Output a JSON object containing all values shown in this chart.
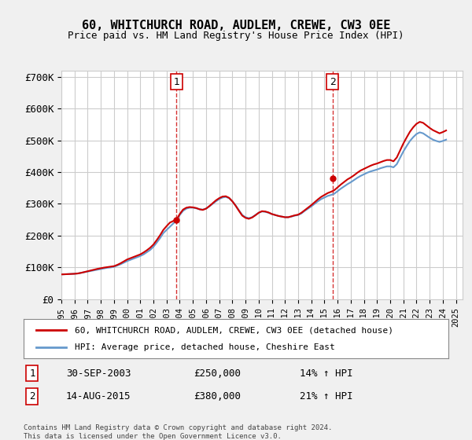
{
  "title": "60, WHITCHURCH ROAD, AUDLEM, CREWE, CW3 0EE",
  "subtitle": "Price paid vs. HM Land Registry's House Price Index (HPI)",
  "xlabel": "",
  "ylabel": "",
  "ylim": [
    0,
    720000
  ],
  "yticks": [
    0,
    100000,
    200000,
    300000,
    400000,
    500000,
    600000,
    700000
  ],
  "ytick_labels": [
    "£0",
    "£100K",
    "£200K",
    "£300K",
    "£400K",
    "£500K",
    "£600K",
    "£700K"
  ],
  "background_color": "#f0f0f0",
  "plot_background": "#ffffff",
  "grid_color": "#cccccc",
  "line1_color": "#cc0000",
  "line2_color": "#6699cc",
  "sale1_date": 2003.75,
  "sale1_price": 250000,
  "sale2_date": 2015.62,
  "sale2_price": 380000,
  "vline_color": "#cc0000",
  "marker_size": 8,
  "legend1_label": "60, WHITCHURCH ROAD, AUDLEM, CREWE, CW3 0EE (detached house)",
  "legend2_label": "HPI: Average price, detached house, Cheshire East",
  "annotation1_num": "1",
  "annotation2_num": "2",
  "note1_num": "1",
  "note1_date": "30-SEP-2003",
  "note1_price": "£250,000",
  "note1_hpi": "14% ↑ HPI",
  "note2_num": "2",
  "note2_date": "14-AUG-2015",
  "note2_price": "£380,000",
  "note2_hpi": "21% ↑ HPI",
  "footer": "Contains HM Land Registry data © Crown copyright and database right 2024.\nThis data is licensed under the Open Government Licence v3.0.",
  "hpi_data": {
    "dates": [
      1995.0,
      1995.25,
      1995.5,
      1995.75,
      1996.0,
      1996.25,
      1996.5,
      1996.75,
      1997.0,
      1997.25,
      1997.5,
      1997.75,
      1998.0,
      1998.25,
      1998.5,
      1998.75,
      1999.0,
      1999.25,
      1999.5,
      1999.75,
      2000.0,
      2000.25,
      2000.5,
      2000.75,
      2001.0,
      2001.25,
      2001.5,
      2001.75,
      2002.0,
      2002.25,
      2002.5,
      2002.75,
      2003.0,
      2003.25,
      2003.5,
      2003.75,
      2004.0,
      2004.25,
      2004.5,
      2004.75,
      2005.0,
      2005.25,
      2005.5,
      2005.75,
      2006.0,
      2006.25,
      2006.5,
      2006.75,
      2007.0,
      2007.25,
      2007.5,
      2007.75,
      2008.0,
      2008.25,
      2008.5,
      2008.75,
      2009.0,
      2009.25,
      2009.5,
      2009.75,
      2010.0,
      2010.25,
      2010.5,
      2010.75,
      2011.0,
      2011.25,
      2011.5,
      2011.75,
      2012.0,
      2012.25,
      2012.5,
      2012.75,
      2013.0,
      2013.25,
      2013.5,
      2013.75,
      2014.0,
      2014.25,
      2014.5,
      2014.75,
      2015.0,
      2015.25,
      2015.5,
      2015.75,
      2016.0,
      2016.25,
      2016.5,
      2016.75,
      2017.0,
      2017.25,
      2017.5,
      2017.75,
      2018.0,
      2018.25,
      2018.5,
      2018.75,
      2019.0,
      2019.25,
      2019.5,
      2019.75,
      2020.0,
      2020.25,
      2020.5,
      2020.75,
      2021.0,
      2021.25,
      2021.5,
      2021.75,
      2022.0,
      2022.25,
      2022.5,
      2022.75,
      2023.0,
      2023.25,
      2023.5,
      2023.75,
      2024.0,
      2024.25
    ],
    "hpi_values": [
      78000,
      78500,
      79000,
      79500,
      80000,
      81000,
      83000,
      85000,
      87000,
      89000,
      91000,
      93000,
      95000,
      97000,
      99000,
      100000,
      102000,
      106000,
      110000,
      115000,
      120000,
      124000,
      128000,
      132000,
      136000,
      141000,
      148000,
      155000,
      165000,
      178000,
      192000,
      208000,
      218000,
      228000,
      238000,
      248000,
      265000,
      278000,
      285000,
      288000,
      288000,
      286000,
      283000,
      282000,
      285000,
      292000,
      300000,
      308000,
      315000,
      320000,
      322000,
      318000,
      308000,
      295000,
      280000,
      265000,
      258000,
      255000,
      258000,
      265000,
      272000,
      276000,
      275000,
      272000,
      268000,
      265000,
      262000,
      260000,
      258000,
      258000,
      260000,
      263000,
      265000,
      270000,
      278000,
      285000,
      292000,
      300000,
      308000,
      315000,
      320000,
      325000,
      328000,
      332000,
      340000,
      348000,
      355000,
      362000,
      368000,
      375000,
      382000,
      388000,
      393000,
      398000,
      402000,
      405000,
      408000,
      412000,
      415000,
      418000,
      418000,
      415000,
      425000,
      445000,
      465000,
      482000,
      498000,
      510000,
      520000,
      525000,
      522000,
      515000,
      508000,
      502000,
      498000,
      495000,
      498000,
      502000
    ],
    "price_values": [
      78000,
      78500,
      79000,
      79500,
      80000,
      81000,
      83000,
      85500,
      88000,
      90500,
      93000,
      95500,
      97500,
      99500,
      101000,
      102500,
      104000,
      108000,
      113000,
      119000,
      125000,
      129000,
      133000,
      137000,
      141000,
      147000,
      154000,
      162000,
      172000,
      186000,
      201000,
      218000,
      230000,
      241000,
      246000,
      250000,
      268000,
      282000,
      288000,
      290000,
      289000,
      287000,
      283000,
      281000,
      285000,
      293000,
      302000,
      311000,
      318000,
      323000,
      324000,
      319000,
      308000,
      294000,
      278000,
      263000,
      256000,
      253000,
      257000,
      264000,
      272000,
      277000,
      276000,
      273000,
      268000,
      265000,
      262000,
      260000,
      258000,
      258000,
      261000,
      264000,
      266000,
      272000,
      280000,
      288000,
      296000,
      305000,
      314000,
      322000,
      328000,
      334000,
      338000,
      343000,
      352000,
      361000,
      369000,
      377000,
      383000,
      390000,
      398000,
      405000,
      410000,
      415000,
      420000,
      424000,
      427000,
      431000,
      435000,
      438000,
      438000,
      434000,
      446000,
      468000,
      490000,
      509000,
      527000,
      541000,
      552000,
      558000,
      555000,
      547000,
      539000,
      532000,
      527000,
      522000,
      526000,
      531000
    ]
  }
}
